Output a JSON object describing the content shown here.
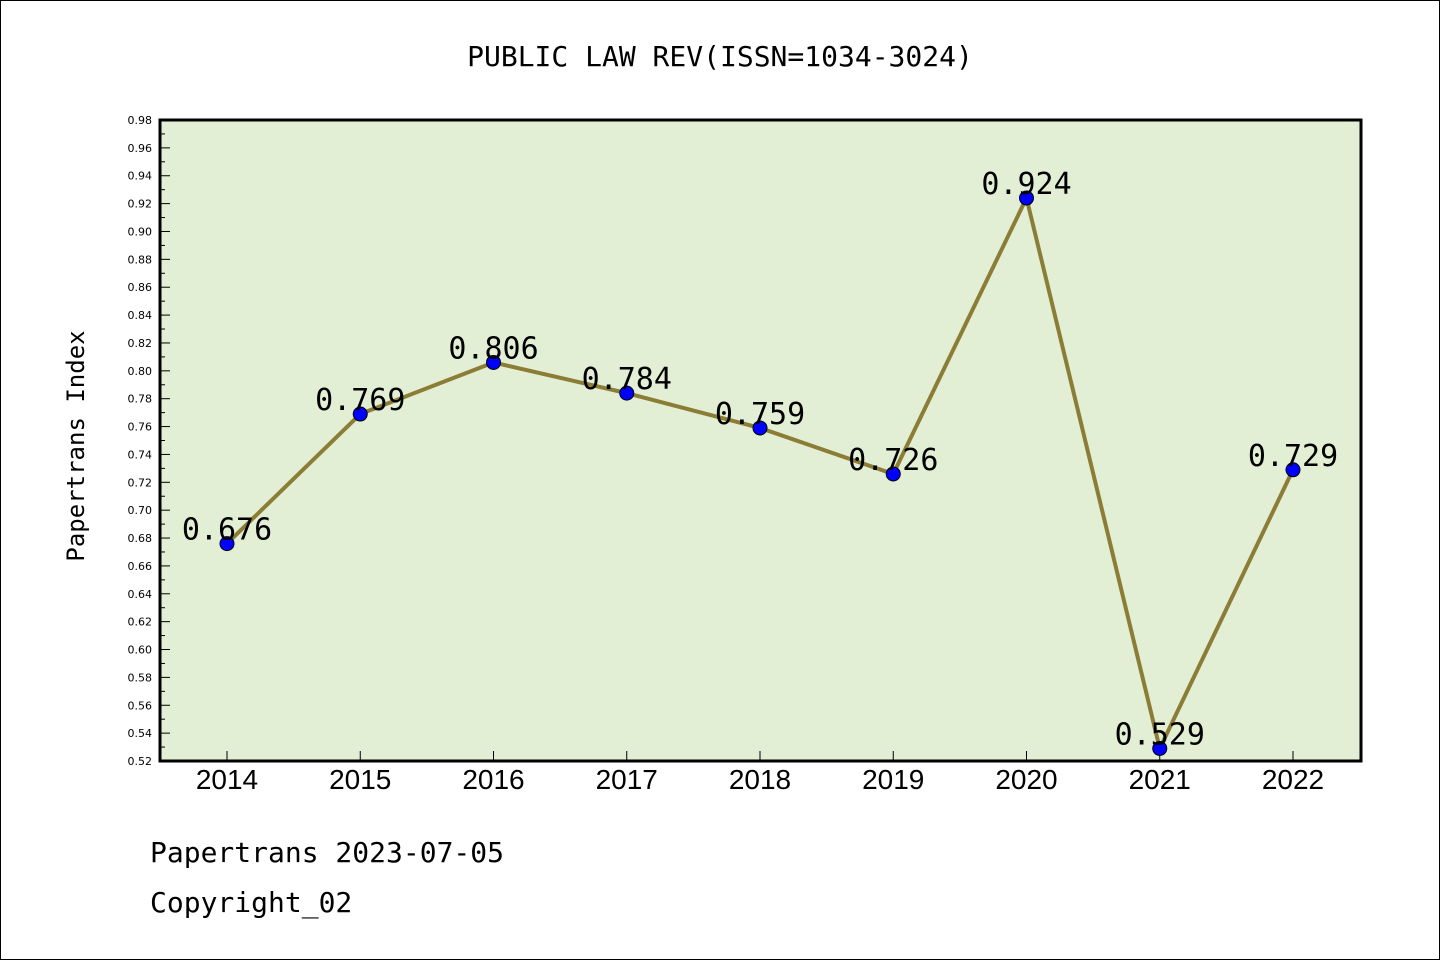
{
  "chart_data": {
    "type": "line",
    "title": "PUBLIC LAW REV(ISSN=1034-3024)",
    "xlabel": "",
    "ylabel": "Papertrans Index",
    "categories": [
      "2014",
      "2015",
      "2016",
      "2017",
      "2018",
      "2019",
      "2020",
      "2021",
      "2022"
    ],
    "series": [
      {
        "values": [
          0.676,
          0.769,
          0.806,
          0.784,
          0.759,
          0.726,
          0.924,
          0.529,
          0.729
        ],
        "labels": [
          "0.676",
          "0.769",
          "0.806",
          "0.784",
          "0.759",
          "0.726",
          "0.924",
          "0.529",
          "0.729"
        ]
      }
    ],
    "ylim": [
      0.52,
      0.98
    ],
    "yticks": [
      "0.52",
      "0.54",
      "0.56",
      "0.58",
      "0.60",
      "0.62",
      "0.64",
      "0.66",
      "0.68",
      "0.70",
      "0.72",
      "0.74",
      "0.76",
      "0.78",
      "0.80",
      "0.82",
      "0.84",
      "0.86",
      "0.88",
      "0.90",
      "0.92",
      "0.94",
      "0.96",
      "0.98"
    ],
    "grid": false,
    "colors": {
      "plot_background": "#e2efd5",
      "line": "#8b7d35",
      "marker": "#0000ff"
    }
  },
  "footer": {
    "line1": "Papertrans 2023-07-05",
    "line2": "Copyright_02"
  }
}
